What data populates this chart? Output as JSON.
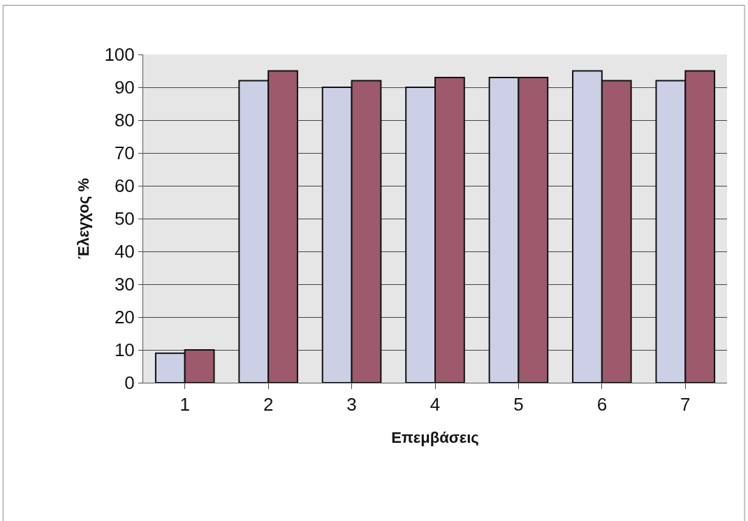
{
  "chart_data": {
    "type": "bar",
    "xlabel": "Επεμβάσεις",
    "ylabel": "Έλεγχος %",
    "categories": [
      "1",
      "2",
      "3",
      "4",
      "5",
      "6",
      "7"
    ],
    "series": [
      {
        "color": "#ccd0e6",
        "values": [
          9,
          92,
          90,
          90,
          93,
          95,
          92
        ]
      },
      {
        "color": "#9c5a6c",
        "values": [
          10,
          95,
          92,
          93,
          93,
          92,
          95
        ]
      }
    ],
    "ylim": [
      0,
      100
    ],
    "yticks": [
      0,
      10,
      20,
      30,
      40,
      50,
      60,
      70,
      80,
      90,
      100
    ],
    "grid": "y",
    "legend": false
  }
}
